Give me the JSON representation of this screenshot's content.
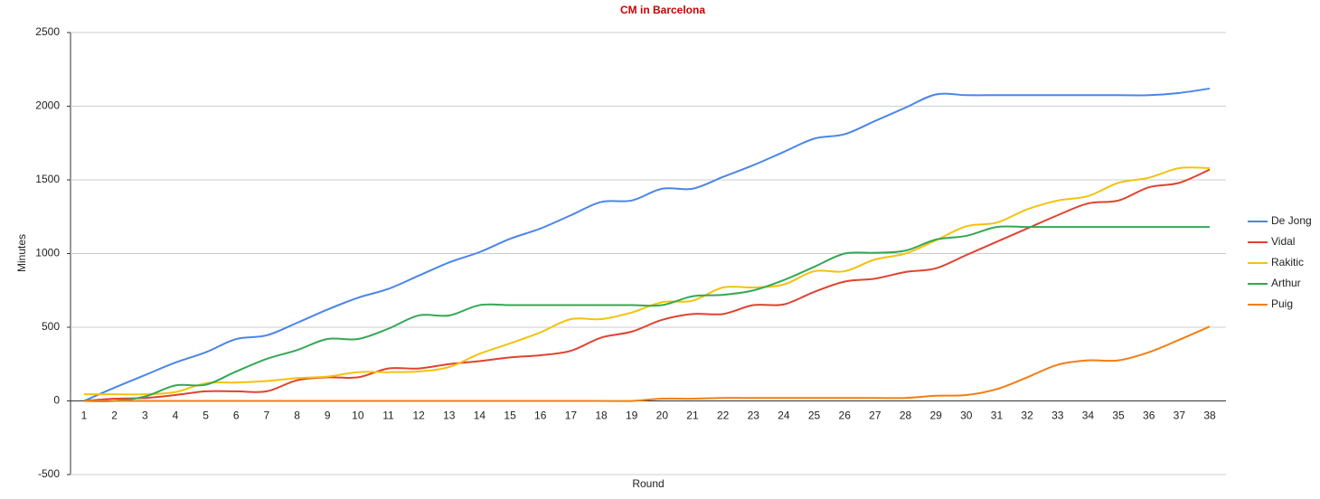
{
  "chart_data": {
    "type": "line",
    "title": "CM in Barcelona",
    "x_label": "Round",
    "y_label": "Minutes",
    "categories": [
      1,
      2,
      3,
      4,
      5,
      6,
      7,
      8,
      9,
      10,
      11,
      12,
      13,
      14,
      15,
      16,
      17,
      18,
      19,
      20,
      21,
      22,
      23,
      24,
      25,
      26,
      27,
      28,
      29,
      30,
      31,
      32,
      33,
      34,
      35,
      36,
      37,
      38
    ],
    "ylim": [
      -500,
      2500
    ],
    "yticks": [
      -500,
      0,
      500,
      1000,
      1500,
      2000,
      2500
    ],
    "grid": true,
    "smooth": true,
    "legend": "right",
    "series": [
      {
        "name": "De Jong",
        "color": "#4a86e8",
        "values": [
          0,
          90,
          175,
          260,
          330,
          420,
          445,
          530,
          620,
          700,
          760,
          850,
          940,
          1010,
          1100,
          1170,
          1260,
          1350,
          1360,
          1440,
          1440,
          1520,
          1600,
          1690,
          1780,
          1810,
          1900,
          1990,
          2080,
          2075,
          2075,
          2075,
          2075,
          2075,
          2075,
          2075,
          2090,
          2120
        ]
      },
      {
        "name": "Vidal",
        "color": "#e0422f",
        "values": [
          0,
          15,
          20,
          40,
          65,
          65,
          65,
          140,
          160,
          160,
          220,
          220,
          250,
          270,
          295,
          310,
          340,
          430,
          470,
          550,
          590,
          590,
          650,
          655,
          740,
          810,
          830,
          875,
          900,
          990,
          1080,
          1170,
          1260,
          1340,
          1360,
          1450,
          1480,
          1570
        ]
      },
      {
        "name": "Rakitic",
        "color": "#f4c20d",
        "values": [
          45,
          45,
          45,
          60,
          120,
          125,
          135,
          155,
          165,
          195,
          195,
          200,
          230,
          320,
          390,
          465,
          555,
          555,
          600,
          670,
          680,
          770,
          770,
          790,
          880,
          880,
          960,
          1000,
          1090,
          1185,
          1210,
          1300,
          1360,
          1390,
          1480,
          1515,
          1580,
          1580
        ]
      },
      {
        "name": "Arthur",
        "color": "#34a853",
        "values": [
          0,
          0,
          30,
          105,
          110,
          200,
          285,
          345,
          420,
          420,
          490,
          580,
          580,
          650,
          650,
          650,
          650,
          650,
          650,
          650,
          710,
          720,
          750,
          820,
          910,
          1000,
          1005,
          1020,
          1095,
          1120,
          1180,
          1180,
          1180,
          1180,
          1180,
          1180,
          1180,
          1180
        ]
      },
      {
        "name": "Puig",
        "color": "#f07f12",
        "values": [
          0,
          0,
          0,
          0,
          0,
          0,
          0,
          0,
          0,
          0,
          0,
          0,
          0,
          0,
          0,
          0,
          0,
          0,
          0,
          15,
          15,
          20,
          20,
          20,
          20,
          20,
          20,
          20,
          35,
          40,
          80,
          160,
          245,
          275,
          275,
          330,
          415,
          505
        ]
      }
    ]
  }
}
